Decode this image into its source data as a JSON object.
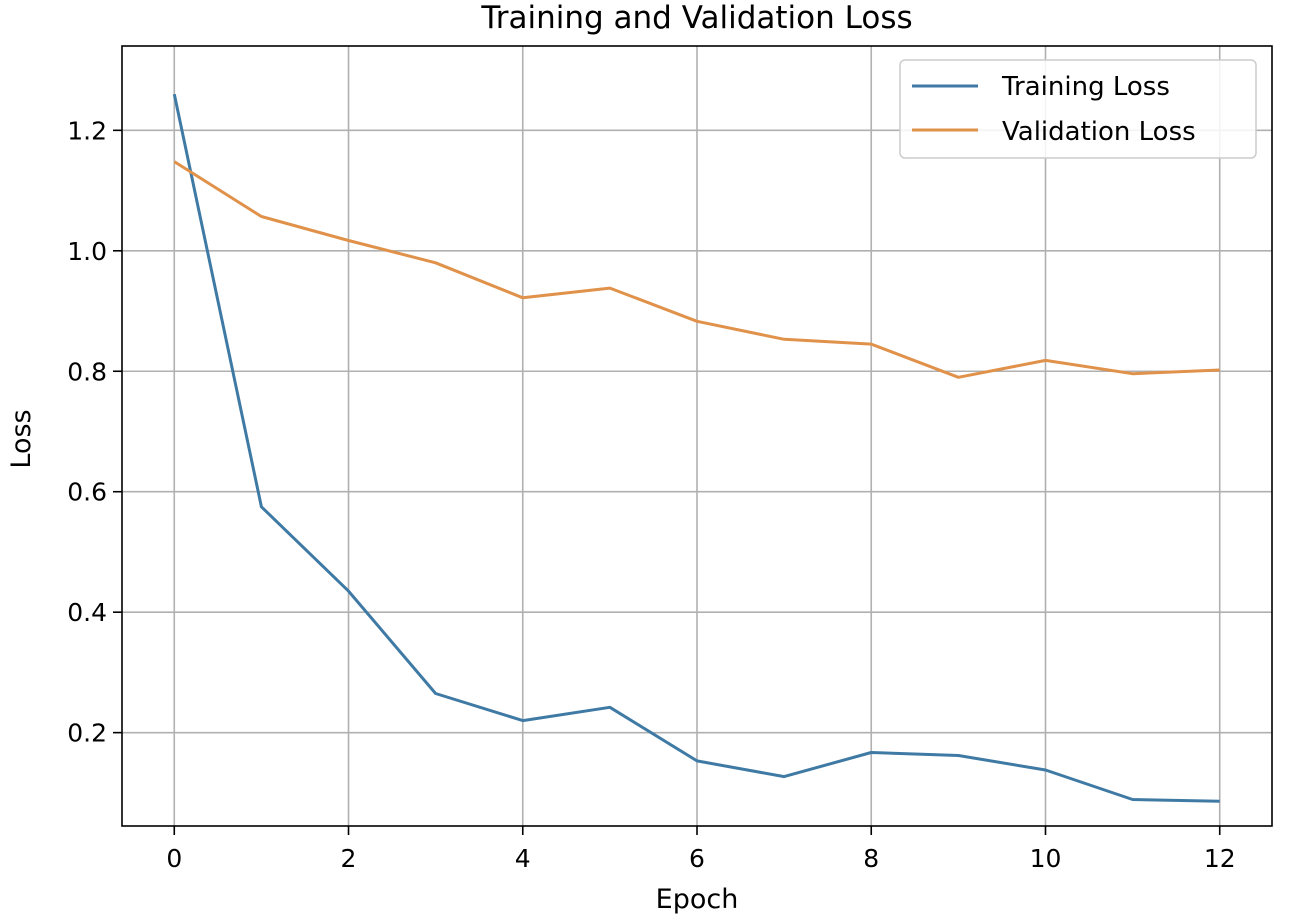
{
  "chart_data": {
    "type": "line",
    "title": "Training and Validation Loss",
    "xlabel": "Epoch",
    "ylabel": "Loss",
    "x": [
      0,
      1,
      2,
      3,
      4,
      5,
      6,
      7,
      8,
      9,
      10,
      11,
      12
    ],
    "xlim": [
      -0.6,
      12.6
    ],
    "ylim": [
      0.045,
      1.34
    ],
    "xticks": [
      0,
      2,
      4,
      6,
      8,
      10,
      12
    ],
    "yticks": [
      0.2,
      0.4,
      0.6,
      0.8,
      1.0,
      1.2
    ],
    "xtick_labels": [
      "0",
      "2",
      "4",
      "6",
      "8",
      "10",
      "12"
    ],
    "ytick_labels": [
      "0.2",
      "0.4",
      "0.6",
      "0.8",
      "1.0",
      "1.2"
    ],
    "grid": true,
    "legend_position": "top-right",
    "series": [
      {
        "name": "Training Loss",
        "color": "#3f7aa5",
        "values": [
          1.26,
          0.575,
          0.435,
          0.265,
          0.22,
          0.242,
          0.153,
          0.127,
          0.167,
          0.162,
          0.138,
          0.089,
          0.086
        ]
      },
      {
        "name": "Validation Loss",
        "color": "#e0914a",
        "values": [
          1.148,
          1.057,
          1.017,
          0.98,
          0.922,
          0.938,
          0.883,
          0.853,
          0.845,
          0.79,
          0.818,
          0.796,
          0.802
        ]
      }
    ]
  }
}
